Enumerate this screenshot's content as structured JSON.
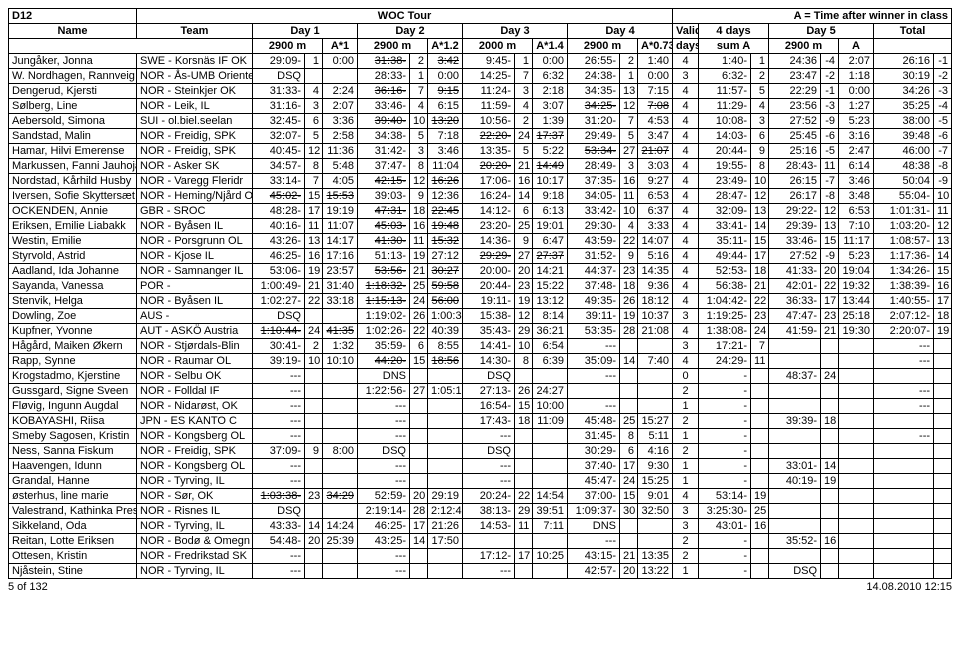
{
  "title": {
    "class": "D12",
    "tour": "WOC Tour",
    "note": "A = Time after winner in class"
  },
  "headers": {
    "row1": [
      "Name",
      "Team",
      "Day 1",
      "Day 2",
      "Day 3",
      "Day 4",
      "Valid",
      "4 days",
      "Day 5",
      "Total"
    ],
    "row2": [
      "2900 m",
      "A*1",
      "2900 m",
      "A*1.2",
      "2000 m",
      "A*1.4",
      "2900 m",
      "A*0.73",
      "days",
      "sum A",
      "2900 m",
      "A"
    ]
  },
  "footer": {
    "left": "5 of 132",
    "right": "14.08.2010 12:15"
  },
  "rows": [
    {
      "name": "Jungåker, Jonna",
      "team": "SWE - Korsnäs IF OK",
      "d1": "29:09-",
      "d1r": "1",
      "d1a": "0:00",
      "d2": "31:38-",
      "d2s": true,
      "d2r": "2",
      "d2a": "3:42",
      "d2as": true,
      "d3": "9:45-",
      "d3r": "1",
      "d3a": "0:00",
      "d4": "26:55-",
      "d4r": "2",
      "d4a": "1:40",
      "v": "4",
      "sum": "1:40-",
      "sumr": "1",
      "d5": "24:36",
      "d5r": "-4",
      "d5a": "2:07",
      "tot": "26:16",
      "totr": "-1"
    },
    {
      "name": "W. Nordhagen, Rannveig",
      "team": "NOR - Ås-UMB Oriente",
      "d1": "DSQ",
      "d1r": "",
      "d1a": "",
      "d2": "28:33-",
      "d2r": "1",
      "d2a": "0:00",
      "d3": "14:25-",
      "d3r": "7",
      "d3a": "6:32",
      "d4": "24:38-",
      "d4r": "1",
      "d4a": "0:00",
      "v": "3",
      "sum": "6:32-",
      "sumr": "2",
      "d5": "23:47",
      "d5r": "-2",
      "d5a": "1:18",
      "tot": "30:19",
      "totr": "-2"
    },
    {
      "name": "Dengerud, Kjersti",
      "team": "NOR - Steinkjer OK",
      "d1": "31:33-",
      "d1r": "4",
      "d1a": "2:24",
      "d2": "36:16-",
      "d2s": true,
      "d2r": "7",
      "d2a": "9:15",
      "d2as": true,
      "d3": "11:24-",
      "d3r": "3",
      "d3a": "2:18",
      "d4": "34:35-",
      "d4r": "13",
      "d4a": "7:15",
      "v": "4",
      "sum": "11:57-",
      "sumr": "5",
      "d5": "22:29",
      "d5r": "-1",
      "d5a": "0:00",
      "tot": "34:26",
      "totr": "-3"
    },
    {
      "name": "Sølberg, Line",
      "team": "NOR - Leik, IL",
      "d1": "31:16-",
      "d1r": "3",
      "d1a": "2:07",
      "d2": "33:46-",
      "d2r": "4",
      "d2a": "6:15",
      "d3": "11:59-",
      "d3r": "4",
      "d3a": "3:07",
      "d4": "34:25-",
      "d4s": true,
      "d4r": "12",
      "d4a": "7:08",
      "d4as": true,
      "v": "4",
      "sum": "11:29-",
      "sumr": "4",
      "d5": "23:56",
      "d5r": "-3",
      "d5a": "1:27",
      "tot": "35:25",
      "totr": "-4"
    },
    {
      "name": "Aebersold, Simona",
      "team": "SUI - ol.biel.seelan",
      "d1": "32:45-",
      "d1r": "6",
      "d1a": "3:36",
      "d2": "39:40-",
      "d2s": true,
      "d2r": "10",
      "d2a": "13:20",
      "d2as": true,
      "d3": "10:56-",
      "d3r": "2",
      "d3a": "1:39",
      "d4": "31:20-",
      "d4r": "7",
      "d4a": "4:53",
      "v": "4",
      "sum": "10:08-",
      "sumr": "3",
      "d5": "27:52",
      "d5r": "-9",
      "d5a": "5:23",
      "tot": "38:00",
      "totr": "-5"
    },
    {
      "name": "Sandstad, Malin",
      "team": "NOR - Freidig, SPK",
      "d1": "32:07-",
      "d1r": "5",
      "d1a": "2:58",
      "d2": "34:38-",
      "d2r": "5",
      "d2a": "7:18",
      "d3": "22:20-",
      "d3s": true,
      "d3r": "24",
      "d3a": "17:37",
      "d3as": true,
      "d4": "29:49-",
      "d4r": "5",
      "d4a": "3:47",
      "v": "4",
      "sum": "14:03-",
      "sumr": "6",
      "d5": "25:45",
      "d5r": "-6",
      "d5a": "3:16",
      "tot": "39:48",
      "totr": "-6"
    },
    {
      "name": "Hamar, Hilvi Emerense",
      "team": "NOR - Freidig, SPK",
      "d1": "40:45-",
      "d1r": "12",
      "d1a": "11:36",
      "d2": "31:42-",
      "d2r": "3",
      "d2a": "3:46",
      "d3": "13:35-",
      "d3r": "5",
      "d3a": "5:22",
      "d4": "53:34-",
      "d4s": true,
      "d4r": "27",
      "d4a": "21:07",
      "d4as": true,
      "v": "4",
      "sum": "20:44-",
      "sumr": "9",
      "d5": "25:16",
      "d5r": "-5",
      "d5a": "2:47",
      "tot": "46:00",
      "totr": "-7"
    },
    {
      "name": "Markussen, Fanni Jauhojär",
      "team": "NOR - Asker SK",
      "d1": "34:57-",
      "d1r": "8",
      "d1a": "5:48",
      "d2": "37:47-",
      "d2r": "8",
      "d2a": "11:04",
      "d3": "20:20-",
      "d3s": true,
      "d3r": "21",
      "d3a": "14:49",
      "d3as": true,
      "d4": "28:49-",
      "d4r": "3",
      "d4a": "3:03",
      "v": "4",
      "sum": "19:55-",
      "sumr": "8",
      "d5": "28:43-",
      "d5r": "11",
      "d5a": "6:14",
      "tot": "48:38",
      "totr": "-8"
    },
    {
      "name": "Nordstad, Kårhild Husby",
      "team": "NOR - Varegg Fleridr",
      "d1": "33:14-",
      "d1r": "7",
      "d1a": "4:05",
      "d2": "42:15-",
      "d2s": true,
      "d2r": "12",
      "d2a": "16:26",
      "d2as": true,
      "d3": "17:06-",
      "d3r": "16",
      "d3a": "10:17",
      "d4": "37:35-",
      "d4r": "16",
      "d4a": "9:27",
      "v": "4",
      "sum": "23:49-",
      "sumr": "10",
      "d5": "26:15",
      "d5r": "-7",
      "d5a": "3:46",
      "tot": "50:04",
      "totr": "-9"
    },
    {
      "name": "Iversen, Sofie Skyttersæt",
      "team": "NOR - Heming/Njård O",
      "d1": "45:02-",
      "d1s": true,
      "d1r": "15",
      "d1a": "15:53",
      "d1as": true,
      "d2": "39:03-",
      "d2r": "9",
      "d2a": "12:36",
      "d3": "16:24-",
      "d3r": "14",
      "d3a": "9:18",
      "d4": "34:05-",
      "d4r": "11",
      "d4a": "6:53",
      "v": "4",
      "sum": "28:47-",
      "sumr": "12",
      "d5": "26:17",
      "d5r": "-8",
      "d5a": "3:48",
      "tot": "55:04-",
      "totr": "10"
    },
    {
      "name": "OCKENDEN, Annie",
      "team": "GBR - SROC",
      "d1": "48:28-",
      "d1r": "17",
      "d1a": "19:19",
      "d2": "47:31-",
      "d2s": true,
      "d2r": "18",
      "d2a": "22:45",
      "d2as": true,
      "d3": "14:12-",
      "d3r": "6",
      "d3a": "6:13",
      "d4": "33:42-",
      "d4r": "10",
      "d4a": "6:37",
      "v": "4",
      "sum": "32:09-",
      "sumr": "13",
      "d5": "29:22-",
      "d5r": "12",
      "d5a": "6:53",
      "tot": "1:01:31-",
      "totr": "11"
    },
    {
      "name": "Eriksen, Emilie Liabakk",
      "team": "NOR - Byåsen IL",
      "d1": "40:16-",
      "d1r": "11",
      "d1a": "11:07",
      "d2": "45:03-",
      "d2s": true,
      "d2r": "16",
      "d2a": "19:48",
      "d2as": true,
      "d3": "23:20-",
      "d3r": "25",
      "d3a": "19:01",
      "d4": "29:30-",
      "d4r": "4",
      "d4a": "3:33",
      "v": "4",
      "sum": "33:41-",
      "sumr": "14",
      "d5": "29:39-",
      "d5r": "13",
      "d5a": "7:10",
      "tot": "1:03:20-",
      "totr": "12"
    },
    {
      "name": "Westin, Emilie",
      "team": "NOR - Porsgrunn OL",
      "d1": "43:26-",
      "d1r": "13",
      "d1a": "14:17",
      "d2": "41:30-",
      "d2s": true,
      "d2r": "11",
      "d2a": "15:32",
      "d2as": true,
      "d3": "14:36-",
      "d3r": "9",
      "d3a": "6:47",
      "d4": "43:59-",
      "d4r": "22",
      "d4a": "14:07",
      "v": "4",
      "sum": "35:11-",
      "sumr": "15",
      "d5": "33:46-",
      "d5r": "15",
      "d5a": "11:17",
      "tot": "1:08:57-",
      "totr": "13"
    },
    {
      "name": "Styrvold, Astrid",
      "team": "NOR - Kjose IL",
      "d1": "46:25-",
      "d1r": "16",
      "d1a": "17:16",
      "d2": "51:13-",
      "d2r": "19",
      "d2a": "27:12",
      "d3": "29:29-",
      "d3s": true,
      "d3r": "27",
      "d3a": "27:37",
      "d3as": true,
      "d4": "31:52-",
      "d4r": "9",
      "d4a": "5:16",
      "v": "4",
      "sum": "49:44-",
      "sumr": "17",
      "d5": "27:52",
      "d5r": "-9",
      "d5a": "5:23",
      "tot": "1:17:36-",
      "totr": "14"
    },
    {
      "name": "Aadland, Ida Johanne",
      "team": "NOR - Samnanger IL",
      "d1": "53:06-",
      "d1r": "19",
      "d1a": "23:57",
      "d2": "53:56-",
      "d2s": true,
      "d2r": "21",
      "d2a": "30:27",
      "d2as": true,
      "d3": "20:00-",
      "d3r": "20",
      "d3a": "14:21",
      "d4": "44:37-",
      "d4r": "23",
      "d4a": "14:35",
      "v": "4",
      "sum": "52:53-",
      "sumr": "18",
      "d5": "41:33-",
      "d5r": "20",
      "d5a": "19:04",
      "tot": "1:34:26-",
      "totr": "15"
    },
    {
      "name": "Sayanda, Vanessa",
      "team": "POR -",
      "d1": "1:00:49-",
      "d1r": "21",
      "d1a": "31:40",
      "d2": "1:18:32-",
      "d2s": true,
      "d2r": "25",
      "d2a": "59:58",
      "d2as": true,
      "d3": "20:44-",
      "d3r": "23",
      "d3a": "15:22",
      "d4": "37:48-",
      "d4r": "18",
      "d4a": "9:36",
      "v": "4",
      "sum": "56:38-",
      "sumr": "21",
      "d5": "42:01-",
      "d5r": "22",
      "d5a": "19:32",
      "tot": "1:38:39-",
      "totr": "16"
    },
    {
      "name": "Stenvik, Helga",
      "team": "NOR - Byåsen IL",
      "d1": "1:02:27-",
      "d1r": "22",
      "d1a": "33:18",
      "d2": "1:15:13-",
      "d2s": true,
      "d2r": "24",
      "d2a": "56:00",
      "d2as": true,
      "d3": "19:11-",
      "d3r": "19",
      "d3a": "13:12",
      "d4": "49:35-",
      "d4r": "26",
      "d4a": "18:12",
      "v": "4",
      "sum": "1:04:42-",
      "sumr": "22",
      "d5": "36:33-",
      "d5r": "17",
      "d5a": "13:44",
      "tot": "1:40:55-",
      "totr": "17"
    },
    {
      "name": "Dowling, Zoe",
      "team": "AUS -",
      "d1": "DSQ",
      "d1r": "",
      "d1a": "",
      "d2": "1:19:02-",
      "d2r": "26",
      "d2a": "1:00:34",
      "d3": "15:38-",
      "d3r": "12",
      "d3a": "8:14",
      "d4": "39:11-",
      "d4r": "19",
      "d4a": "10:37",
      "v": "3",
      "sum": "1:19:25-",
      "sumr": "23",
      "d5": "47:47-",
      "d5r": "23",
      "d5a": "25:18",
      "tot": "2:07:12-",
      "totr": "18"
    },
    {
      "name": "Kupfner, Yvonne",
      "team": "AUT - ASKÖ Austria",
      "d1": "1:10:44-",
      "d1s": true,
      "d1r": "24",
      "d1a": "41:35",
      "d1as": true,
      "d2": "1:02:26-",
      "d2r": "22",
      "d2a": "40:39",
      "d3": "35:43-",
      "d3r": "29",
      "d3a": "36:21",
      "d4": "53:35-",
      "d4r": "28",
      "d4a": "21:08",
      "v": "4",
      "sum": "1:38:08-",
      "sumr": "24",
      "d5": "41:59-",
      "d5r": "21",
      "d5a": "19:30",
      "tot": "2:20:07-",
      "totr": "19"
    },
    {
      "name": "Hågård, Maiken Økern",
      "team": "NOR - Stjørdals-Blin",
      "d1": "30:41-",
      "d1r": "2",
      "d1a": "1:32",
      "d2": "35:59-",
      "d2r": "6",
      "d2a": "8:55",
      "d3": "14:41-",
      "d3r": "10",
      "d3a": "6:54",
      "d4": "---",
      "d4r": "",
      "d4a": "",
      "v": "3",
      "sum": "17:21-",
      "sumr": "7",
      "d5": "",
      "d5r": "",
      "d5a": "",
      "tot": "---",
      "totr": ""
    },
    {
      "name": "Rapp, Synne",
      "team": "NOR - Raumar OL",
      "d1": "39:19-",
      "d1r": "10",
      "d1a": "10:10",
      "d2": "44:20-",
      "d2s": true,
      "d2r": "15",
      "d2a": "18:56",
      "d2as": true,
      "d3": "14:30-",
      "d3r": "8",
      "d3a": "6:39",
      "d4": "35:09-",
      "d4r": "14",
      "d4a": "7:40",
      "v": "4",
      "sum": "24:29-",
      "sumr": "11",
      "d5": "",
      "d5r": "",
      "d5a": "",
      "tot": "---",
      "totr": ""
    },
    {
      "name": "Krogstadmo, Kjerstine",
      "team": "NOR - Selbu OK",
      "d1": "---",
      "d1r": "",
      "d1a": "",
      "d2": "DNS",
      "d2r": "",
      "d2a": "",
      "d3": "DSQ",
      "d3r": "",
      "d3a": "",
      "d4": "---",
      "d4r": "",
      "d4a": "",
      "v": "0",
      "sum": "-",
      "sumr": "",
      "d5": "48:37-",
      "d5r": "24",
      "d5a": "",
      "tot": "",
      "totr": ""
    },
    {
      "name": "Gussgard, Signe Sveen",
      "team": "NOR - Folldal IF",
      "d1": "---",
      "d1r": "",
      "d1a": "",
      "d2": "1:22:56-",
      "d2r": "27",
      "d2a": "1:05:15",
      "d3": "27:13-",
      "d3r": "26",
      "d3a": "24:27",
      "d4": "",
      "d4r": "",
      "d4a": "",
      "v": "2",
      "sum": "-",
      "sumr": "",
      "d5": "",
      "d5r": "",
      "d5a": "",
      "tot": "---",
      "totr": ""
    },
    {
      "name": "Fløvig, Ingunn Augdal",
      "team": "NOR - Nidarøst, OK",
      "d1": "---",
      "d1r": "",
      "d1a": "",
      "d2": "---",
      "d2r": "",
      "d2a": "",
      "d3": "16:54-",
      "d3r": "15",
      "d3a": "10:00",
      "d4": "---",
      "d4r": "",
      "d4a": "",
      "v": "1",
      "sum": "-",
      "sumr": "",
      "d5": "",
      "d5r": "",
      "d5a": "",
      "tot": "---",
      "totr": ""
    },
    {
      "name": "KOBAYASHI, Riisa",
      "team": "JPN - ES KANTO C",
      "d1": "---",
      "d1r": "",
      "d1a": "",
      "d2": "---",
      "d2r": "",
      "d2a": "",
      "d3": "17:43-",
      "d3r": "18",
      "d3a": "11:09",
      "d4": "45:48-",
      "d4r": "25",
      "d4a": "15:27",
      "v": "2",
      "sum": "-",
      "sumr": "",
      "d5": "39:39-",
      "d5r": "18",
      "d5a": "",
      "tot": "",
      "totr": ""
    },
    {
      "name": "Smeby Sagosen, Kristin",
      "team": "NOR - Kongsberg OL",
      "d1": "---",
      "d1r": "",
      "d1a": "",
      "d2": "---",
      "d2r": "",
      "d2a": "",
      "d3": "---",
      "d3r": "",
      "d3a": "",
      "d4": "31:45-",
      "d4r": "8",
      "d4a": "5:11",
      "v": "1",
      "sum": "-",
      "sumr": "",
      "d5": "",
      "d5r": "",
      "d5a": "",
      "tot": "---",
      "totr": ""
    },
    {
      "name": "Ness, Sanna Fiskum",
      "team": "NOR - Freidig, SPK",
      "d1": "37:09-",
      "d1r": "9",
      "d1a": "8:00",
      "d2": "DSQ",
      "d2r": "",
      "d2a": "",
      "d3": "DSQ",
      "d3r": "",
      "d3a": "",
      "d4": "30:29-",
      "d4r": "6",
      "d4a": "4:16",
      "v": "2",
      "sum": "-",
      "sumr": "",
      "d5": "",
      "d5r": "",
      "d5a": "",
      "tot": "",
      "totr": ""
    },
    {
      "name": "Haavengen, Idunn",
      "team": "NOR - Kongsberg OL",
      "d1": "---",
      "d1r": "",
      "d1a": "",
      "d2": "---",
      "d2r": "",
      "d2a": "",
      "d3": "---",
      "d3r": "",
      "d3a": "",
      "d4": "37:40-",
      "d4r": "17",
      "d4a": "9:30",
      "v": "1",
      "sum": "-",
      "sumr": "",
      "d5": "33:01-",
      "d5r": "14",
      "d5a": "",
      "tot": "",
      "totr": ""
    },
    {
      "name": "Grandal, Hanne",
      "team": "NOR - Tyrving, IL",
      "d1": "---",
      "d1r": "",
      "d1a": "",
      "d2": "---",
      "d2r": "",
      "d2a": "",
      "d3": "---",
      "d3r": "",
      "d3a": "",
      "d4": "45:47-",
      "d4r": "24",
      "d4a": "15:25",
      "v": "1",
      "sum": "-",
      "sumr": "",
      "d5": "40:19-",
      "d5r": "19",
      "d5a": "",
      "tot": "",
      "totr": ""
    },
    {
      "name": "østerhus, line marie",
      "team": "NOR - Sør, OK",
      "d1": "1:03:38-",
      "d1s": true,
      "d1r": "23",
      "d1a": "34:29",
      "d1as": true,
      "d2": "52:59-",
      "d2r": "20",
      "d2a": "29:19",
      "d3": "20:24-",
      "d3r": "22",
      "d3a": "14:54",
      "d4": "37:00-",
      "d4r": "15",
      "d4a": "9:01",
      "v": "4",
      "sum": "53:14-",
      "sumr": "19",
      "d5": "",
      "d5r": "",
      "d5a": "",
      "tot": "",
      "totr": ""
    },
    {
      "name": "Valestrand, Kathinka Pres",
      "team": "NOR - Risnes IL",
      "d1": "DSQ",
      "d1r": "",
      "d1a": "",
      "d2": "2:19:14-",
      "d2r": "28",
      "d2a": "2:12:48",
      "d3": "38:13-",
      "d3r": "29",
      "d3a": "39:51",
      "d4": "1:09:37-",
      "d4r": "30",
      "d4a": "32:50",
      "v": "3",
      "sum": "3:25:30-",
      "sumr": "25",
      "d5": "",
      "d5r": "",
      "d5a": "",
      "tot": "",
      "totr": ""
    },
    {
      "name": "Sikkeland, Oda",
      "team": "NOR - Tyrving, IL",
      "d1": "43:33-",
      "d1r": "14",
      "d1a": "14:24",
      "d2": "46:25-",
      "d2r": "17",
      "d2a": "21:26",
      "d3": "14:53-",
      "d3r": "11",
      "d3a": "7:11",
      "d4": "DNS",
      "d4r": "",
      "d4a": "",
      "v": "3",
      "sum": "43:01-",
      "sumr": "16",
      "d5": "",
      "d5r": "",
      "d5a": "",
      "tot": "",
      "totr": ""
    },
    {
      "name": "Reitan, Lotte Eriksen",
      "team": "NOR - Bodø & Omegn I",
      "d1": "54:48-",
      "d1r": "20",
      "d1a": "25:39",
      "d2": "43:25-",
      "d2r": "14",
      "d2a": "17:50",
      "d3": "",
      "d3r": "",
      "d3a": "",
      "d4": "---",
      "d4r": "",
      "d4a": "",
      "v": "2",
      "sum": "-",
      "sumr": "",
      "d5": "35:52-",
      "d5r": "16",
      "d5a": "",
      "tot": "",
      "totr": ""
    },
    {
      "name": "Ottesen, Kristin",
      "team": "NOR - Fredrikstad SK",
      "d1": "---",
      "d1r": "",
      "d1a": "",
      "d2": "---",
      "d2r": "",
      "d2a": "",
      "d3": "17:12-",
      "d3r": "17",
      "d3a": "10:25",
      "d4": "43:15-",
      "d4r": "21",
      "d4a": "13:35",
      "v": "2",
      "sum": "-",
      "sumr": "",
      "d5": "",
      "d5r": "",
      "d5a": "",
      "tot": "",
      "totr": ""
    },
    {
      "name": "Njåstein, Stine",
      "team": "NOR - Tyrving, IL",
      "d1": "---",
      "d1r": "",
      "d1a": "",
      "d2": "---",
      "d2r": "",
      "d2a": "",
      "d3": "---",
      "d3r": "",
      "d3a": "",
      "d4": "42:57-",
      "d4r": "20",
      "d4a": "13:22",
      "v": "1",
      "sum": "-",
      "sumr": "",
      "d5": "DSQ",
      "d5r": "",
      "d5a": "",
      "tot": "",
      "totr": ""
    }
  ]
}
